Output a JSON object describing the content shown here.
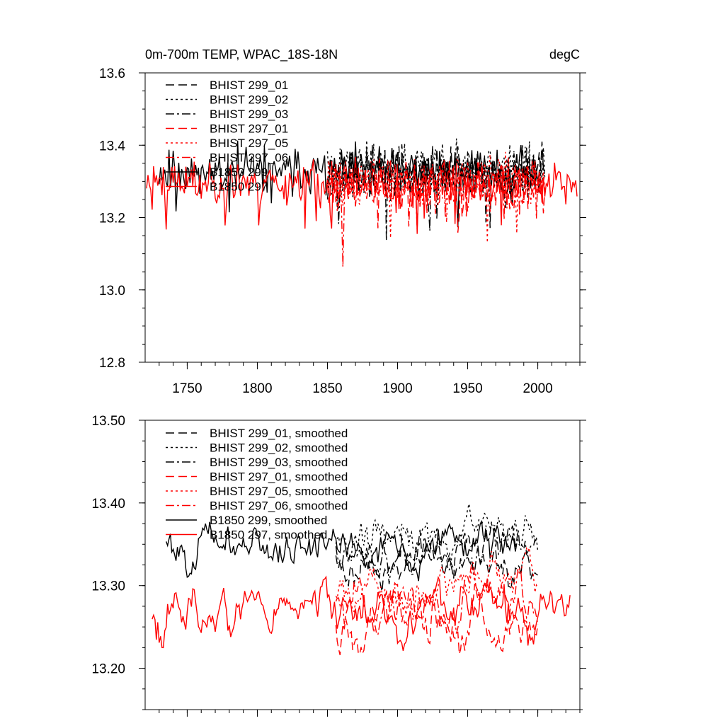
{
  "colors": {
    "black": "#000000",
    "red": "#ff0000"
  },
  "chart_data": [
    {
      "type": "line",
      "title_left": "0m-700m TEMP, WPAC_18S-18N",
      "title_right": "degC",
      "xlim": [
        1720,
        2030
      ],
      "ylim": [
        12.8,
        13.6
      ],
      "xticks": [
        1750,
        1800,
        1850,
        1900,
        1950,
        2000
      ],
      "xticklabels": [
        "1750",
        "1800",
        "1850",
        "1900",
        "1950",
        "2000"
      ],
      "yticks": [
        12.8,
        13.0,
        13.2,
        13.4,
        13.6
      ],
      "yticklabels": [
        "12.8",
        "13.0",
        "13.2",
        "13.4",
        "13.6"
      ],
      "legend": [
        {
          "label": "BHIST 299_01",
          "color": "#000000",
          "dash": "long"
        },
        {
          "label": "BHIST 299_02",
          "color": "#000000",
          "dash": "dot"
        },
        {
          "label": "BHIST 299_03",
          "color": "#000000",
          "dash": "dashdot"
        },
        {
          "label": "BHIST 297_01",
          "color": "#ff0000",
          "dash": "long"
        },
        {
          "label": "BHIST 297_05",
          "color": "#ff0000",
          "dash": "dot"
        },
        {
          "label": "BHIST 297_06",
          "color": "#ff0000",
          "dash": "dashdot"
        },
        {
          "label": "B1850 299",
          "color": "#000000",
          "dash": "solid"
        },
        {
          "label": "B1850 297",
          "color": "#ff0000",
          "dash": "solid"
        }
      ],
      "series": [
        {
          "name": "B1850 299",
          "color": "#000000",
          "dash": "solid",
          "x_start": 1730,
          "x_end": 2003,
          "mean": 13.33,
          "amp": 0.09,
          "seed": 11
        },
        {
          "name": "B1850 297",
          "color": "#ff0000",
          "dash": "solid",
          "x_start": 1721,
          "x_end": 2028,
          "mean": 13.3,
          "amp": 0.09,
          "seed": 23
        },
        {
          "name": "BHIST 299_01",
          "color": "#000000",
          "dash": "long",
          "x_start": 1850,
          "x_end": 2005,
          "mean": 13.33,
          "amp": 0.1,
          "seed": 37
        },
        {
          "name": "BHIST 299_02",
          "color": "#000000",
          "dash": "dot",
          "x_start": 1850,
          "x_end": 2005,
          "mean": 13.34,
          "amp": 0.1,
          "seed": 41
        },
        {
          "name": "BHIST 299_03",
          "color": "#000000",
          "dash": "dashdot",
          "x_start": 1850,
          "x_end": 2005,
          "mean": 13.32,
          "amp": 0.1,
          "seed": 53
        },
        {
          "name": "BHIST 297_01",
          "color": "#ff0000",
          "dash": "long",
          "x_start": 1850,
          "x_end": 2005,
          "mean": 13.28,
          "amp": 0.1,
          "seed": 61
        },
        {
          "name": "BHIST 297_05",
          "color": "#ff0000",
          "dash": "dot",
          "x_start": 1850,
          "x_end": 2005,
          "mean": 13.3,
          "amp": 0.1,
          "seed": 71
        },
        {
          "name": "BHIST 297_06",
          "color": "#ff0000",
          "dash": "dashdot",
          "x_start": 1850,
          "x_end": 2005,
          "mean": 13.29,
          "amp": 0.1,
          "seed": 83
        }
      ]
    },
    {
      "type": "line",
      "xlim": [
        1720,
        2030
      ],
      "ylim": [
        13.15,
        13.5
      ],
      "xticks": [
        1750,
        1800,
        1850,
        1900,
        1950,
        2000
      ],
      "yticks": [
        13.2,
        13.3,
        13.4,
        13.5
      ],
      "yticklabels": [
        "13.20",
        "13.30",
        "13.40",
        "13.50"
      ],
      "legend": [
        {
          "label": "BHIST 299_01, smoothed",
          "color": "#000000",
          "dash": "long"
        },
        {
          "label": "BHIST 299_02, smoothed",
          "color": "#000000",
          "dash": "dot"
        },
        {
          "label": "BHIST 299_03, smoothed",
          "color": "#000000",
          "dash": "dashdot"
        },
        {
          "label": "BHIST 297_01, smoothed",
          "color": "#ff0000",
          "dash": "long"
        },
        {
          "label": "BHIST 297_05, smoothed",
          "color": "#ff0000",
          "dash": "dot"
        },
        {
          "label": "BHIST 297_06, smoothed",
          "color": "#ff0000",
          "dash": "dashdot"
        },
        {
          "label": "B1850 299, smoothed",
          "color": "#000000",
          "dash": "solid"
        },
        {
          "label": "B1850 297, smoothed",
          "color": "#ff0000",
          "dash": "solid"
        }
      ],
      "series": [
        {
          "name": "B1850 299, smoothed",
          "color": "#000000",
          "dash": "solid",
          "x_start": 1735,
          "x_end": 1985,
          "mean": 13.35,
          "amp": 0.05,
          "seed": 101
        },
        {
          "name": "B1850 297, smoothed",
          "color": "#ff0000",
          "dash": "solid",
          "x_start": 1725,
          "x_end": 2023,
          "mean": 13.27,
          "amp": 0.06,
          "seed": 113
        },
        {
          "name": "BHIST 299_01, smoothed",
          "color": "#000000",
          "dash": "long",
          "x_start": 1856,
          "x_end": 2000,
          "mean": 13.33,
          "amp": 0.05,
          "seed": 127
        },
        {
          "name": "BHIST 299_02, smoothed",
          "color": "#000000",
          "dash": "dot",
          "x_start": 1856,
          "x_end": 2000,
          "mean": 13.36,
          "amp": 0.05,
          "seed": 131
        },
        {
          "name": "BHIST 299_03, smoothed",
          "color": "#000000",
          "dash": "dashdot",
          "x_start": 1856,
          "x_end": 2000,
          "mean": 13.34,
          "amp": 0.05,
          "seed": 149
        },
        {
          "name": "BHIST 297_01, smoothed",
          "color": "#ff0000",
          "dash": "long",
          "x_start": 1856,
          "x_end": 2000,
          "mean": 13.26,
          "amp": 0.06,
          "seed": 157
        },
        {
          "name": "BHIST 297_05, smoothed",
          "color": "#ff0000",
          "dash": "dot",
          "x_start": 1856,
          "x_end": 2000,
          "mean": 13.3,
          "amp": 0.05,
          "seed": 163
        },
        {
          "name": "BHIST 297_06, smoothed",
          "color": "#ff0000",
          "dash": "dashdot",
          "x_start": 1856,
          "x_end": 2000,
          "mean": 13.28,
          "amp": 0.05,
          "seed": 173
        }
      ]
    }
  ]
}
